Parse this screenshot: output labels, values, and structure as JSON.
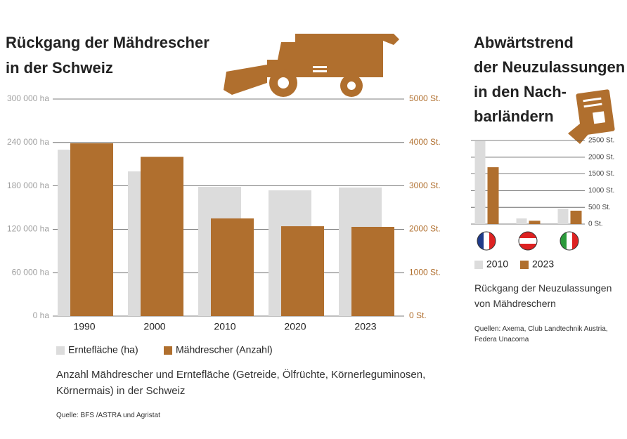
{
  "chart_data": [
    {
      "type": "bar",
      "title_lines": [
        "Rückgang der Mähdrescher",
        "in der Schweiz"
      ],
      "categories": [
        "1990",
        "2000",
        "2010",
        "2020",
        "2023"
      ],
      "series": [
        {
          "name": "Erntefläche (ha)",
          "color": "#dcdcdc",
          "values": [
            230000,
            200000,
            178600,
            173800,
            177700
          ]
        },
        {
          "name": "Mähdrescher (Anzahl)",
          "color": "#b06f2e",
          "axis": "y2",
          "values": [
            3980,
            3670,
            2250,
            2070,
            2055
          ]
        }
      ],
      "ylim": [
        0,
        300000
      ],
      "yticks": [
        {
          "value": 0,
          "label": "0 ha"
        },
        {
          "value": 60000,
          "label": "60 000 ha"
        },
        {
          "value": 120000,
          "label": "120 000 ha"
        },
        {
          "value": 180000,
          "label": "180 000 ha"
        },
        {
          "value": 240000,
          "label": "240 000 ha"
        },
        {
          "value": 300000,
          "label": "300 000 ha"
        }
      ],
      "y2lim": [
        0,
        5000
      ],
      "y2ticks": [
        {
          "value": 0,
          "label": "0 St."
        },
        {
          "value": 1000,
          "label": "1000 St."
        },
        {
          "value": 2000,
          "label": "2000 St."
        },
        {
          "value": 3000,
          "label": "3000 St."
        },
        {
          "value": 4000,
          "label": "4000 St."
        },
        {
          "value": 5000,
          "label": "5000 St."
        }
      ],
      "grid": true,
      "caption": "Anzahl Mähdrescher und Erntefläche (Getreide, Ölfrüchte, Körnerleguminosen, Körnermais) in der Schweiz",
      "source": "Quelle: BFS /ASTRA und Agristat"
    },
    {
      "type": "bar",
      "title_lines": [
        "Abwärtstrend",
        "der Neuzulassungen",
        "in den Nach-",
        "barländern"
      ],
      "categories": [
        null,
        null,
        null
      ],
      "series": [
        {
          "name": "2010",
          "color": "#dcdcdc",
          "values": [
            2480,
            170,
            460
          ]
        },
        {
          "name": "2023",
          "color": "#b06f2e",
          "values": [
            1700,
            100,
            400
          ]
        }
      ],
      "ylim": [
        0,
        2500
      ],
      "yticks": [
        {
          "value": 0,
          "label": "0 St."
        },
        {
          "value": 500,
          "label": "500 St."
        },
        {
          "value": 1000,
          "label": "1000 St."
        },
        {
          "value": 1500,
          "label": "1500 St."
        },
        {
          "value": 2000,
          "label": "2000 St."
        },
        {
          "value": 2500,
          "label": "2500 St."
        }
      ],
      "ytick_side": "right",
      "grid": true,
      "caption": "Rückgang der Neuzulassungen von Mähdreschern",
      "source": "Quellen: Axema, Club Landtechnik Austria, Federa Unacoma"
    }
  ]
}
